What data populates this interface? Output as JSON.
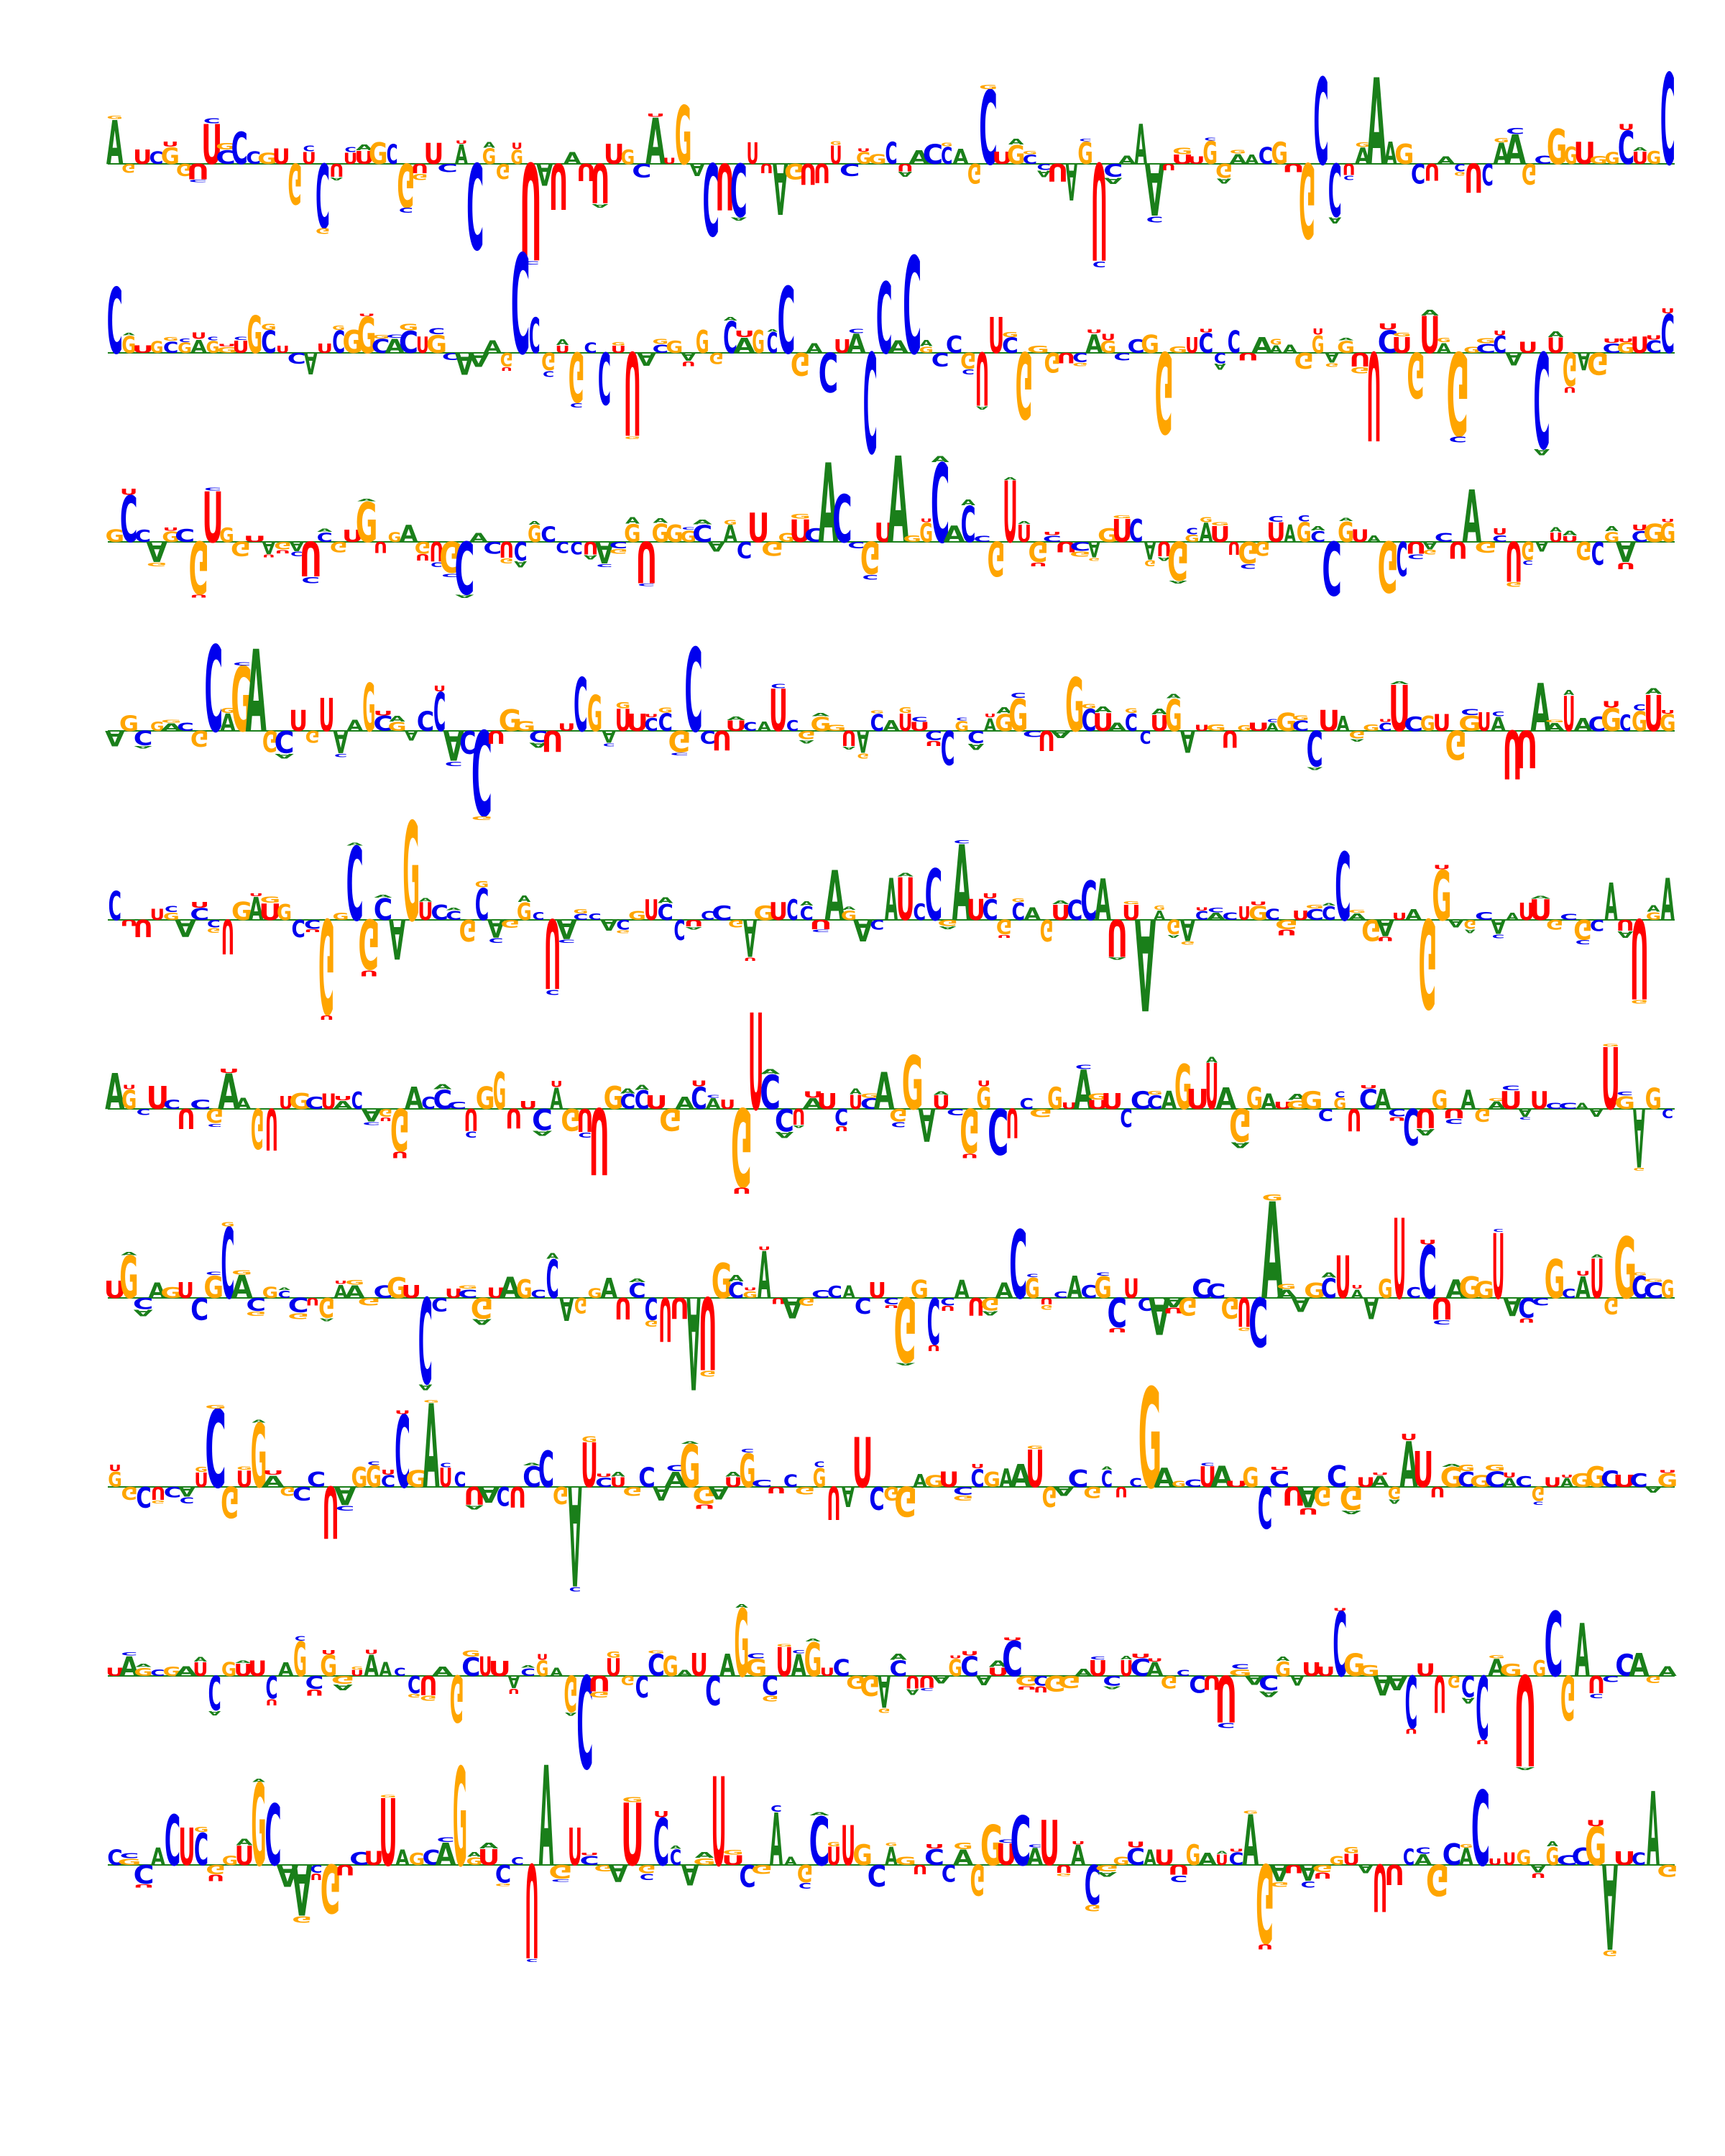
{
  "figure": {
    "type": "sequence-logo",
    "alphabet": [
      "A",
      "C",
      "G",
      "U"
    ],
    "colors": {
      "A": "#1a7f1a",
      "C": "#0000ee",
      "G": "#ffa500",
      "U": "#ff0000"
    },
    "rows": [
      "AGUCGGUUCCCGUGUCUUUGCGUUCACGGGUAUAUUUGCAUGACUCUUAGUUUCGGCUACCAGCUGCCUAGUCAAAUUUGGAACGUGCCUAAAGCUACUCAAGCGGUGGCUGC",
      "CGUGCGAGGUGCUCAUCGGCACUGCAAAGCCGUGCCUUACGAGGCAGCCGACUACCACGCCGUUCGGGUCAGCCGGGUCCCUAAAGGAGUUCUGUAGGCCAUCUGAGCGUCC",
      "GCCAGCGUGGUAGAUCGUGUGAGUGCACUCGCCCUACGUGGGCAACUGGUCACCGUAGGCACCGUUGCUCAGUCAUGGAUUGGUAGCCGUAGCUACUAGCUGAUUGCGACGG",
      "AGCGACGCAGAGCUGUAAGCGACCACCUGGCUUCGAUUCCGCCUUCAUCGGGUACAUUCCGCAGGCUAGCUACCUGAUGUGUAGCCUAGGCUCGUGGUAUUAAUACGCGUG",
      "CUUUGACCUGAUGCCGGCGCAGUCCGCAGGCUACCACGUCCUCCGAGUCCUAGACAUCCGAUCGCAGUCCAUUAAGACACUGCGUCCCAGAUAGGAGCAAUUGCGCAUUGA",
      "AGCUCUCGAAGUUGCUACAGGACCCUGGUUCAGUUGCCUGACAUGUCCUAUCUCAGGAUCGGCUCGGUAUUCCCAGUUAGGAUGGCGUCACCUGUAGAUAUCCAAUGAGC",
      "UGCAGUCGCACGCCUGAAGCGUCCUCGUAGCCAGGAUCCUUAUGCGAUAGCCACUCGGCCAUGACGUCACGCUCAAGCCGUCAAAGCUAAGUCCUAGGUACCGCAUGGCCG",
      "GGCUCAUCGUGAGCCUAGGCCGAUCUACUCCGAUCUGCAAGGAUGCUCGGUAUCGGAGUCCGAAUGACGCUCGAGCUAUGCCUAGCGUAGAUUGCGCACGUAGGCUCAG",
      "UAGCGAUCGUUCAGCGGUAACCUAGCUUACGAGCUUGCCGAUCAGGCUAGUCGGACUUAGCAUCGCGGAUCUCAGCCUUGACGAUUCGGAACUUGCCAGUGCGAUCCAGA",
      "CGCACUCGGUGCAACGUCUUAGCAGGUCCUAGUCGAUGCCAGUUCGAAGCUUGCAGUCCAGGUCAUUACGGCAUUGAUCAGAUAGGUAUUCAGCACUUGAGCCGAUCAG"
    ]
  }
}
